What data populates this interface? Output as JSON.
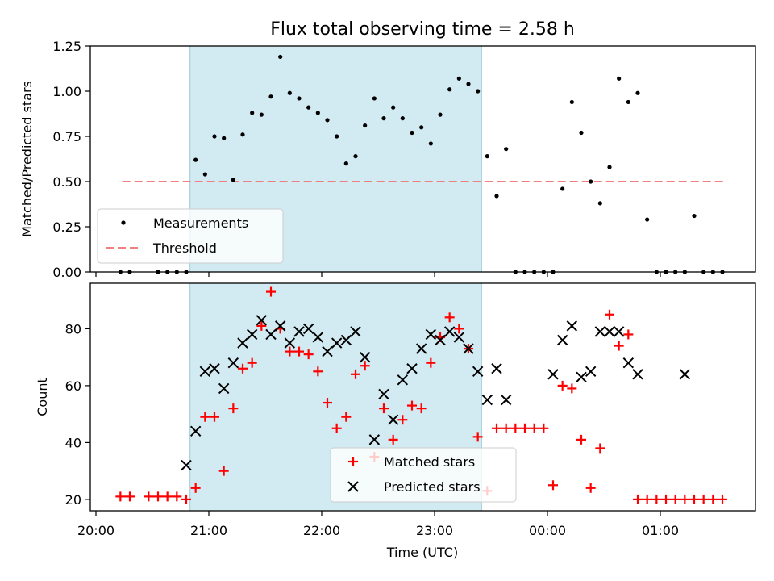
{
  "chart_data": [
    {
      "type": "scatter",
      "title": "Flux total observing time = 2.58 h",
      "ylabel": "Matched/Predicted stars",
      "xlabel": "",
      "ylim": [
        0,
        1.25
      ],
      "yticks": [
        "0.00",
        "0.25",
        "0.50",
        "0.75",
        "1.00",
        "1.25"
      ],
      "highlight_band": {
        "x_start": "20:50",
        "x_end": "23:25",
        "color": "#add8e6"
      },
      "legend": {
        "placement": "lower-left",
        "entries": [
          "Measurements",
          "Threshold"
        ]
      },
      "threshold": {
        "name": "Threshold",
        "y": 0.5,
        "x_start": "20:14",
        "x_end": "01:34",
        "color": "#f08080"
      },
      "series": [
        {
          "name": "Measurements",
          "color": "#000000",
          "x": [
            "20:13",
            "20:18",
            "20:33",
            "20:38",
            "20:43",
            "20:48",
            "20:53",
            "20:58",
            "21:03",
            "21:08",
            "21:13",
            "21:18",
            "21:23",
            "21:28",
            "21:33",
            "21:38",
            "21:43",
            "21:48",
            "21:53",
            "21:58",
            "22:03",
            "22:08",
            "22:13",
            "22:18",
            "22:23",
            "22:28",
            "22:33",
            "22:38",
            "22:43",
            "22:48",
            "22:53",
            "22:58",
            "23:03",
            "23:08",
            "23:13",
            "23:18",
            "23:23",
            "23:28",
            "23:33",
            "23:38",
            "23:43",
            "23:48",
            "23:53",
            "23:58",
            "00:03",
            "00:08",
            "00:13",
            "00:18",
            "00:23",
            "00:28",
            "00:33",
            "00:38",
            "00:43",
            "00:48",
            "00:53",
            "00:58",
            "01:03",
            "01:08",
            "01:13",
            "01:18",
            "01:23",
            "01:28",
            "01:33"
          ],
          "y": [
            0,
            0,
            0,
            0,
            0,
            0,
            0.62,
            0.54,
            0.75,
            0.74,
            0.51,
            0.76,
            0.88,
            0.87,
            0.97,
            1.19,
            0.99,
            0.96,
            0.91,
            0.88,
            0.84,
            0.75,
            0.6,
            0.64,
            0.81,
            0.96,
            0.85,
            0.91,
            0.85,
            0.77,
            0.8,
            0.71,
            0.87,
            1.01,
            1.07,
            1.04,
            1.0,
            0.64,
            0.42,
            0.68,
            0,
            0,
            0,
            0,
            0,
            0.46,
            0.94,
            0.77,
            0.5,
            0.38,
            0.58,
            1.07,
            0.94,
            0.99,
            0.29,
            0,
            0,
            0,
            0,
            0.31,
            0,
            0,
            0
          ]
        }
      ]
    },
    {
      "type": "scatter",
      "title": "",
      "ylabel": "Count",
      "xlabel": "Time (UTC)",
      "ylim": [
        16,
        96
      ],
      "yticks": [
        "20",
        "40",
        "60",
        "80"
      ],
      "xticks": [
        "20:00",
        "21:00",
        "22:00",
        "23:00",
        "00:00",
        "01:00"
      ],
      "highlight_band": {
        "x_start": "20:50",
        "x_end": "23:25",
        "color": "#add8e6"
      },
      "legend": {
        "placement": "lower-center",
        "entries": [
          "Matched stars",
          "Predicted stars"
        ]
      },
      "series": [
        {
          "name": "Matched stars",
          "marker": "plus",
          "color": "#ff0000",
          "x": [
            "20:13",
            "20:18",
            "20:28",
            "20:33",
            "20:38",
            "20:43",
            "20:48",
            "20:53",
            "20:58",
            "21:03",
            "21:08",
            "21:13",
            "21:18",
            "21:23",
            "21:28",
            "21:33",
            "21:38",
            "21:43",
            "21:48",
            "21:53",
            "21:58",
            "22:03",
            "22:08",
            "22:13",
            "22:18",
            "22:23",
            "22:28",
            "22:33",
            "22:38",
            "22:43",
            "22:48",
            "22:53",
            "22:58",
            "23:03",
            "23:08",
            "23:13",
            "23:18",
            "23:23",
            "23:28",
            "23:33",
            "23:38",
            "23:43",
            "23:48",
            "23:53",
            "23:58",
            "00:03",
            "00:08",
            "00:13",
            "00:18",
            "00:23",
            "00:28",
            "00:33",
            "00:38",
            "00:43",
            "00:48",
            "00:53",
            "00:58",
            "01:03",
            "01:08",
            "01:13",
            "01:18",
            "01:23",
            "01:28",
            "01:33"
          ],
          "y": [
            21,
            21,
            21,
            21,
            21,
            21,
            20,
            24,
            49,
            49,
            30,
            52,
            66,
            68,
            81,
            93,
            80,
            72,
            72,
            71,
            65,
            54,
            45,
            49,
            64,
            67,
            35,
            52,
            41,
            48,
            53,
            52,
            68,
            77,
            84,
            80,
            73,
            42,
            23,
            45,
            45,
            45,
            45,
            45,
            45,
            25,
            60,
            59,
            41,
            24,
            38,
            85,
            74,
            78,
            20,
            20,
            20,
            20,
            20,
            20,
            20,
            20,
            20,
            20
          ]
        },
        {
          "name": "Predicted stars",
          "marker": "x",
          "color": "#000000",
          "x": [
            "20:48",
            "20:53",
            "20:58",
            "21:03",
            "21:08",
            "21:13",
            "21:18",
            "21:23",
            "21:28",
            "21:33",
            "21:38",
            "21:43",
            "21:48",
            "21:53",
            "21:58",
            "22:03",
            "22:08",
            "22:13",
            "22:18",
            "22:23",
            "22:28",
            "22:33",
            "22:38",
            "22:43",
            "22:48",
            "22:53",
            "22:58",
            "23:03",
            "23:08",
            "23:13",
            "23:18",
            "23:23",
            "23:28",
            "23:33",
            "23:38",
            "00:03",
            "00:08",
            "00:13",
            "00:18",
            "00:23",
            "00:28",
            "00:33",
            "00:38",
            "00:43",
            "00:48",
            "01:13"
          ],
          "y": [
            32,
            44,
            65,
            66,
            59,
            68,
            75,
            78,
            83,
            78,
            81,
            75,
            79,
            80,
            77,
            72,
            75,
            76,
            79,
            70,
            41,
            57,
            48,
            62,
            66,
            73,
            78,
            76,
            79,
            77,
            73,
            65,
            55,
            66,
            55,
            64,
            76,
            81,
            63,
            65,
            79,
            79,
            79,
            68,
            64,
            64
          ]
        }
      ]
    }
  ]
}
